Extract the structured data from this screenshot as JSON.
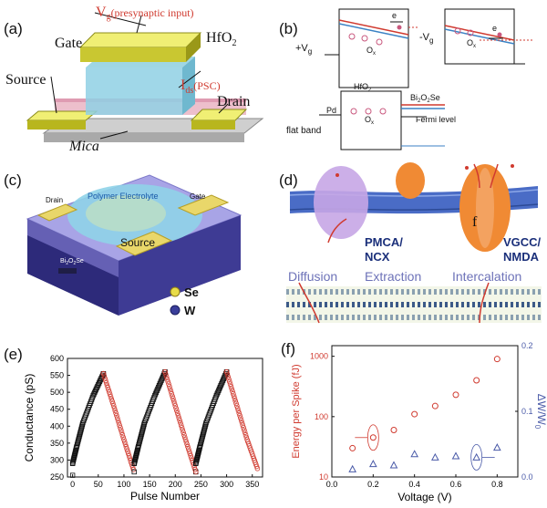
{
  "panels": {
    "a": {
      "label": "(a)",
      "gate": "Gate",
      "vg": "V",
      "vg_sub": "g",
      "vg_note": "(presynaptic input)",
      "hfo2": "HfO",
      "hfo2_sub": "2",
      "source": "Source",
      "ids": "I",
      "ids_sub": "ds",
      "ids_note": "(PSC)",
      "drain": "Drain",
      "mica": "Mica"
    },
    "b": {
      "label": "(b)",
      "plus_vg": "+V",
      "plus_vg_sub": "g",
      "minus_vg": "-V",
      "minus_vg_sub": "g",
      "e1": "e",
      "e2": "e",
      "ox1": "O",
      "ox2": "O",
      "ox3": "O",
      "ox_sub": "x",
      "hfo2": "HfO",
      "hfo2_sub": "2",
      "bi2o2se": "Bi",
      "bi2o2se_rest": "O",
      "bi2o2se_end": "Se",
      "bi_sub1": "2",
      "bi_sub2": "2",
      "fermi": "Fermi level",
      "pd": "Pd",
      "flat_band": "flat band"
    },
    "c": {
      "label": "(c)",
      "drain": "Drain",
      "polymer": "Polymer Electrolyte",
      "gate": "Gate",
      "source": "Source",
      "bi": "Bi",
      "bi_sub": "2",
      "bi_rest": "O",
      "bi_sub2": "2",
      "bi_end": "Se",
      "se": "Se",
      "w": "W"
    },
    "d": {
      "label": "(d)",
      "pmca": "PMCA/",
      "ncx": "NCX",
      "vgcc": "VGCC/",
      "nmda": "NMDA",
      "f": "f",
      "diffusion": "Diffusion",
      "extraction": "Extraction",
      "intercalation": "Intercalation"
    },
    "e": {
      "label": "(e)"
    },
    "f": {
      "label": "(f)"
    }
  },
  "chart_data": [
    {
      "type": "scatter",
      "id": "e",
      "xlabel": "Pulse Number",
      "ylabel": "Conductance (pS)",
      "xlim": [
        -10,
        370
      ],
      "ylim": [
        250,
        600
      ],
      "xticks": [
        0,
        50,
        100,
        150,
        200,
        250,
        300,
        350
      ],
      "yticks": [
        250,
        300,
        350,
        400,
        450,
        500,
        550,
        600
      ],
      "series": [
        {
          "color": "#111111",
          "marker": "square",
          "x": [
            0,
            0,
            60,
            60,
            120,
            120,
            180,
            180,
            240,
            240,
            300,
            300
          ],
          "y": [
            255,
            290,
            555,
            555,
            265,
            290,
            560,
            560,
            265,
            290,
            560,
            560
          ]
        },
        {
          "color": "#d03a2f",
          "marker": "circle",
          "x": [
            60,
            60,
            180,
            180,
            240,
            300,
            300,
            360
          ],
          "y": [
            555,
            555,
            560,
            560,
            265,
            560,
            560,
            275
          ]
        }
      ],
      "segments": [
        {
          "x": [
            0,
            8,
            20,
            40,
            60
          ],
          "y": [
            290,
            340,
            410,
            490,
            555
          ],
          "color": "#111111"
        },
        {
          "x": [
            60,
            80,
            100,
            120
          ],
          "y": [
            555,
            460,
            360,
            265
          ],
          "color": "#d03a2f"
        },
        {
          "x": [
            120,
            128,
            140,
            160,
            180
          ],
          "y": [
            290,
            340,
            410,
            490,
            560
          ],
          "color": "#111111"
        },
        {
          "x": [
            180,
            200,
            220,
            240
          ],
          "y": [
            560,
            460,
            360,
            265
          ],
          "color": "#d03a2f"
        },
        {
          "x": [
            240,
            248,
            260,
            280,
            300
          ],
          "y": [
            290,
            340,
            410,
            490,
            560
          ],
          "color": "#111111"
        },
        {
          "x": [
            300,
            320,
            340,
            360
          ],
          "y": [
            560,
            460,
            360,
            275
          ],
          "color": "#d03a2f"
        }
      ]
    },
    {
      "type": "scatter",
      "id": "f",
      "xlabel": "Voltage (V)",
      "ylabel": "Energy per Spike (fJ)",
      "y2label": "ΔW/W",
      "y2label_sub": "0",
      "xlim": [
        0.0,
        0.9
      ],
      "ylim_log": [
        10,
        1500
      ],
      "y2lim": [
        0.0,
        0.2
      ],
      "xticks": [
        "0.0",
        "0.2",
        "0.4",
        "0.6",
        "0.8"
      ],
      "yticks": [
        "10",
        "100",
        "1000"
      ],
      "y2ticks": [
        "0.0",
        "0.1",
        "0.2"
      ],
      "series": [
        {
          "name": "",
          "color": "#d03a2f",
          "marker": "circle",
          "axis": "left",
          "x": [
            0.1,
            0.2,
            0.3,
            0.4,
            0.5,
            0.6,
            0.7,
            0.8
          ],
          "y": [
            30,
            45,
            60,
            110,
            150,
            230,
            400,
            900
          ]
        },
        {
          "name": "",
          "color": "#4a5aa8",
          "marker": "triangle",
          "axis": "right",
          "x": [
            0.1,
            0.2,
            0.3,
            0.4,
            0.5,
            0.6,
            0.7,
            0.8
          ],
          "y": [
            0.012,
            0.02,
            0.018,
            0.035,
            0.03,
            0.032,
            0.03,
            0.045
          ]
        }
      ]
    }
  ]
}
